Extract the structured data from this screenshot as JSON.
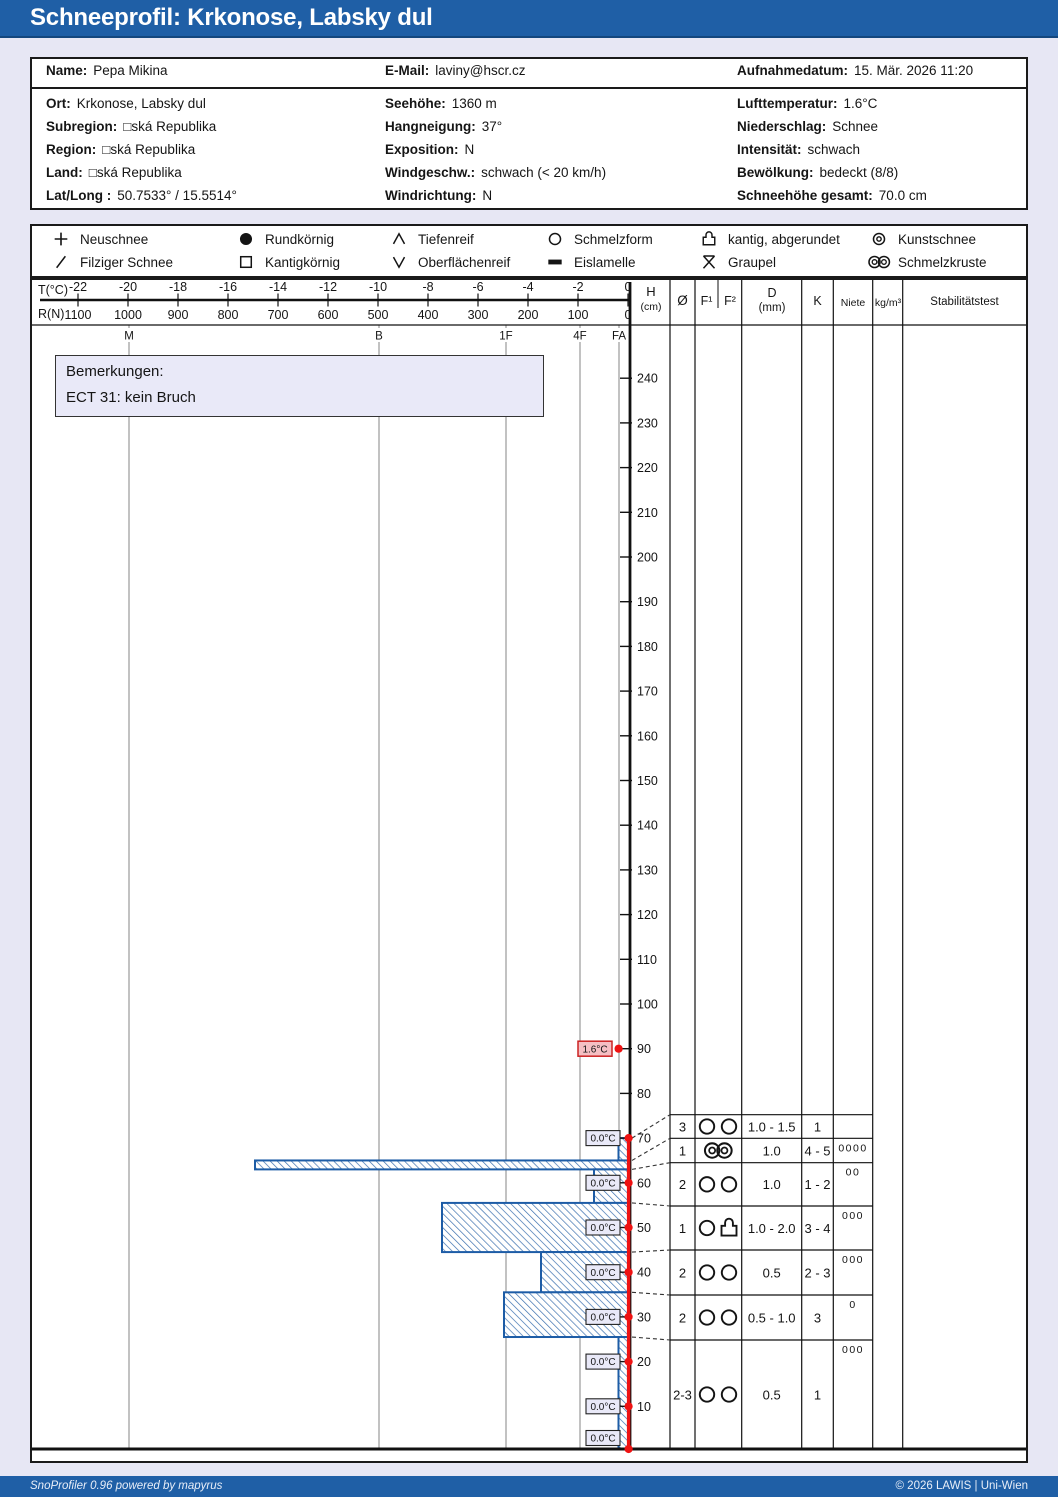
{
  "title": "Schneeprofil: Krkonose, Labsky dul",
  "info": {
    "header": [
      {
        "label": "Name:",
        "value": "Pepa Mikina"
      },
      {
        "label": "E-Mail:",
        "value": "laviny@hscr.cz"
      },
      {
        "label": "Aufnahmedatum:",
        "value": "15. Mär. 2026 11:20"
      }
    ],
    "col1": [
      {
        "label": "Ort:",
        "value": "Krkonose, Labsky dul"
      },
      {
        "label": "Subregion:",
        "value": "□ská Republika"
      },
      {
        "label": "Region:",
        "value": "□ská Republika"
      },
      {
        "label": "Land:",
        "value": "□ská Republika"
      },
      {
        "label": "Lat/Long :",
        "value": "50.7533° / 15.5514°"
      }
    ],
    "col2": [
      {
        "label": "Seehöhe:",
        "value": "1360 m"
      },
      {
        "label": "Hangneigung:",
        "value": "37°"
      },
      {
        "label": "Exposition:",
        "value": "N"
      },
      {
        "label": "Windgeschw.:",
        "value": "schwach (< 20 km/h)"
      },
      {
        "label": "Windrichtung:",
        "value": "N"
      }
    ],
    "col3": [
      {
        "label": "Lufttemperatur:",
        "value": "1.6°C"
      },
      {
        "label": "Niederschlag:",
        "value": "Schnee"
      },
      {
        "label": "Intensität:",
        "value": "schwach"
      },
      {
        "label": "Bewölkung:",
        "value": "bedeckt (8/8)"
      },
      {
        "label": "Schneehöhe gesamt:",
        "value": "70.0 cm"
      }
    ]
  },
  "legend": {
    "items": [
      {
        "icon": "new-snow",
        "label": "Neuschnee"
      },
      {
        "icon": "round-grains",
        "label": "Rundkörnig"
      },
      {
        "icon": "depth-hoar",
        "label": "Tiefenreif"
      },
      {
        "icon": "melt-forms",
        "label": "Schmelzform"
      },
      {
        "icon": "facet-rounded",
        "label": "kantig, abgerundet"
      },
      {
        "icon": "machine-snow",
        "label": "Kunstschnee"
      },
      {
        "icon": "felted-snow",
        "label": "Filziger Schnee"
      },
      {
        "icon": "faceted-grains",
        "label": "Kantigkörnig"
      },
      {
        "icon": "surface-hoar",
        "label": "Oberflächenreif"
      },
      {
        "icon": "ice-lamella",
        "label": "Eislamelle"
      },
      {
        "icon": "graupel",
        "label": "Graupel"
      },
      {
        "icon": "melt-crust",
        "label": "Schmelzkruste"
      }
    ]
  },
  "axes": {
    "t_label": "T(°C)",
    "r_label": "R(N)",
    "h_label": "H",
    "h_unit": "(cm)"
  },
  "table": {
    "headers": {
      "o": "Ø",
      "f1": "F¹",
      "f2": "F²",
      "d": "D",
      "d_unit": "(mm)",
      "k": "K",
      "niete": "Niete",
      "density": "kg/m³",
      "stability": "Stabilitätstest"
    },
    "rows": [
      {
        "o": "3",
        "f": [
          "melt-forms",
          "melt-forms"
        ],
        "d": "1.0 - 1.5",
        "k": "1",
        "niete": ""
      },
      {
        "o": "1",
        "f": [
          "melt-crust"
        ],
        "d": "1.0",
        "k": "4 - 5",
        "niete": "0000"
      },
      {
        "o": "2",
        "f": [
          "melt-forms",
          "melt-forms"
        ],
        "d": "1.0",
        "k": "1 - 2",
        "niete": "00"
      },
      {
        "o": "1",
        "f": [
          "melt-forms",
          "facet-rounded"
        ],
        "d": "1.0 - 2.0",
        "k": "3 - 4",
        "niete": "000"
      },
      {
        "o": "2",
        "f": [
          "melt-forms",
          "melt-forms"
        ],
        "d": "0.5",
        "k": "2 - 3",
        "niete": "000"
      },
      {
        "o": "2",
        "f": [
          "melt-forms",
          "melt-forms"
        ],
        "d": "0.5 - 1.0",
        "k": "3",
        "niete": "0"
      },
      {
        "o": "2-3",
        "f": [
          "melt-forms",
          "melt-forms"
        ],
        "d": "0.5",
        "k": "1",
        "niete": "000"
      }
    ]
  },
  "chart_data": {
    "type": "snow-profile",
    "t_ticks": [
      -22,
      -20,
      -18,
      -16,
      -14,
      -12,
      -10,
      -8,
      -6,
      -4,
      -2,
      0
    ],
    "r_ticks": [
      1100,
      1000,
      900,
      800,
      700,
      600,
      500,
      400,
      300,
      200,
      100,
      0
    ],
    "h_ticks": [
      240,
      230,
      220,
      210,
      200,
      190,
      180,
      170,
      160,
      150,
      140,
      130,
      120,
      110,
      100,
      90,
      80,
      70,
      60,
      50,
      40,
      30,
      20,
      10
    ],
    "hardness_marks": [
      "M",
      "B",
      "1F",
      "4F",
      "FA"
    ],
    "total_snow_height_cm": 70,
    "air_temp": {
      "height_cm": 90,
      "label": "1.6°C"
    },
    "snow_temps": [
      {
        "height_cm": 70,
        "label": "0.0°C"
      },
      {
        "height_cm": 60,
        "label": "0.0°C"
      },
      {
        "height_cm": 50,
        "label": "0.0°C"
      },
      {
        "height_cm": 40,
        "label": "0.0°C"
      },
      {
        "height_cm": 30,
        "label": "0.0°C"
      },
      {
        "height_cm": 20,
        "label": "0.0°C"
      },
      {
        "height_cm": 10,
        "label": "0.0°C"
      },
      {
        "height_cm": 0,
        "label": "0.0°C"
      }
    ],
    "layers": [
      {
        "top_cm": 70,
        "bottom_cm": 65,
        "hardness": "1",
        "k": 1
      },
      {
        "top_cm": 65,
        "bottom_cm": 63,
        "hardness": "4-5",
        "k": 4.5,
        "crust": true
      },
      {
        "top_cm": 63,
        "bottom_cm": 55.5,
        "hardness": "1-2",
        "k": 1.5
      },
      {
        "top_cm": 55.5,
        "bottom_cm": 44.5,
        "hardness": "3-4",
        "k": 3.5
      },
      {
        "top_cm": 44.5,
        "bottom_cm": 35.5,
        "hardness": "2-3",
        "k": 2.5
      },
      {
        "top_cm": 35.5,
        "bottom_cm": 25.5,
        "hardness": "3",
        "k": 3
      },
      {
        "top_cm": 25.5,
        "bottom_cm": 0,
        "hardness": "1",
        "k": 1
      }
    ],
    "remarks": [
      "Bemerkungen:",
      "ECT 31: kein Bruch"
    ]
  },
  "footer": {
    "left": "SnoProfiler 0.96 powered by mapyrus",
    "right": "© 2026 LAWIS | Uni-Wien"
  },
  "colors": {
    "header_blue": "#1f5fa6",
    "hatch_blue": "#3a6fae",
    "layer_border": "#1d5ca6",
    "temp_red": "#ee1212",
    "grid_gray": "#8f8f8f",
    "label_bg": "#e9e9f8",
    "air_label_bg": "#f5bfc3",
    "page_bg": "#e7e7f4"
  }
}
